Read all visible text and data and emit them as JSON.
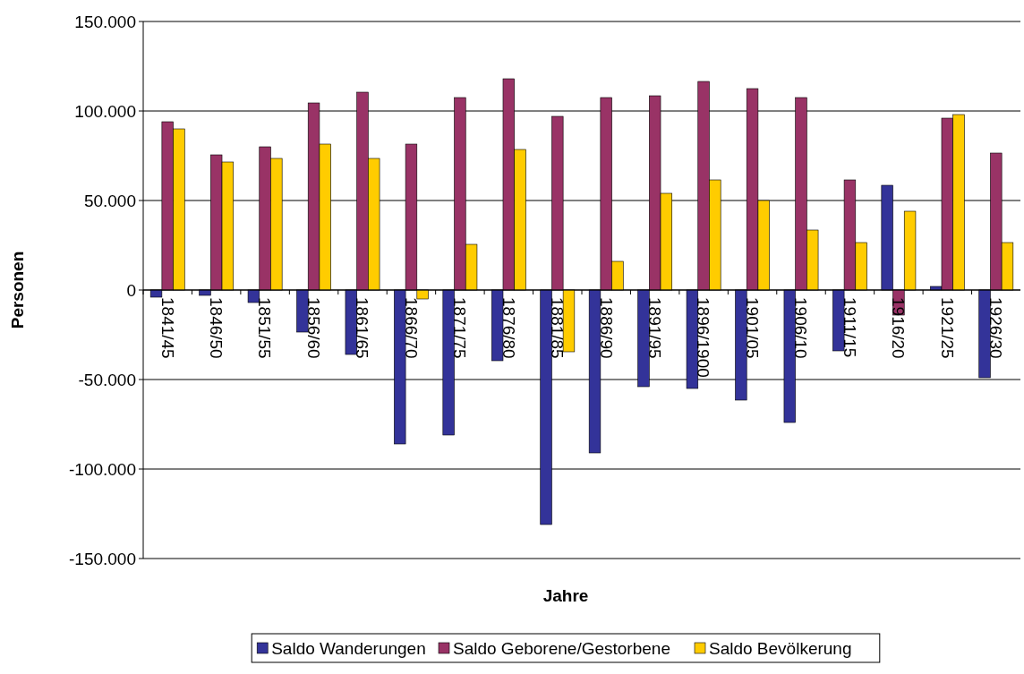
{
  "chart_data": {
    "type": "bar",
    "xlabel": "Jahre",
    "ylabel": "Personen",
    "categories": [
      "1841/45",
      "1846/50",
      "1851/55",
      "1856/60",
      "1861/65",
      "1866/70",
      "1871/75",
      "1876/80",
      "1881/85",
      "1886/90",
      "1891/95",
      "1896/1900",
      "1901/05",
      "1906/10",
      "1911/15",
      "1916/20",
      "1921/25",
      "1926/30"
    ],
    "series": [
      {
        "name": "Saldo Wanderungen",
        "color": "#333399",
        "values": [
          -4000,
          -3000,
          -7000,
          -23500,
          -36000,
          -86000,
          -81000,
          -39500,
          -131000,
          -91000,
          -54000,
          -55000,
          -61500,
          -74000,
          -34000,
          58500,
          2000,
          -49000
        ]
      },
      {
        "name": "Saldo Geborene/Gestorbene",
        "color": "#993366",
        "values": [
          94000,
          75500,
          80000,
          104500,
          110500,
          81500,
          107500,
          118000,
          97000,
          107500,
          108500,
          116500,
          112500,
          107500,
          61500,
          -14000,
          96000,
          76500
        ]
      },
      {
        "name": "Saldo Bevölkerung",
        "color": "#ffcc00",
        "values": [
          90000,
          71500,
          73500,
          81500,
          73500,
          -5000,
          25500,
          78500,
          -34500,
          16000,
          54000,
          61500,
          50000,
          33500,
          26500,
          44000,
          98000,
          26500
        ]
      }
    ],
    "ylim": [
      -150000,
      150000
    ],
    "yticks": [
      {
        "value": -150000,
        "label": "-150.000"
      },
      {
        "value": -100000,
        "label": "-100.000"
      },
      {
        "value": -50000,
        "label": "-50.000"
      },
      0,
      {
        "value": 50000,
        "label": "50.000"
      },
      {
        "value": 100000,
        "label": "100.000"
      },
      {
        "value": 150000,
        "label": "150.000"
      }
    ],
    "grid": "y",
    "legend": "bottom"
  }
}
